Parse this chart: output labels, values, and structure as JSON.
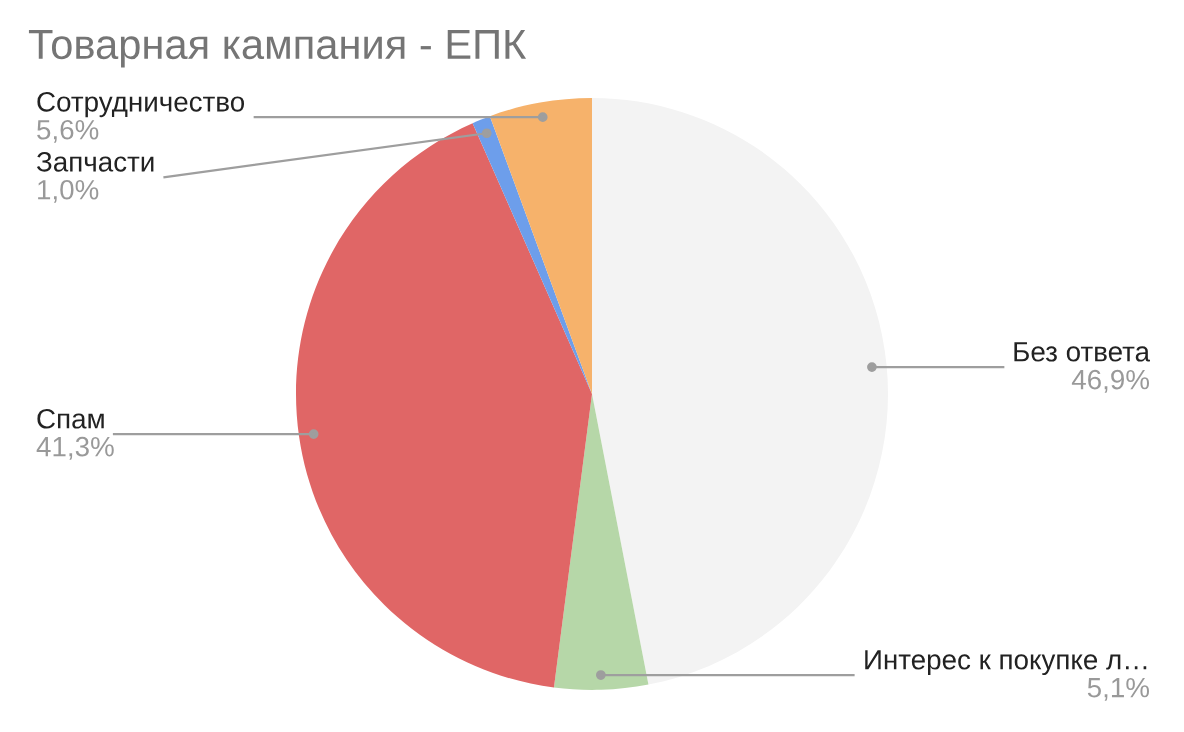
{
  "chart_data": {
    "type": "pie",
    "title": "Товарная кампания - ЕПК",
    "categories": [
      "Без ответа",
      "Интерес к покупке л…",
      "Спам",
      "Запчасти",
      "Сотрудничество"
    ],
    "values": [
      46.9,
      5.1,
      41.3,
      1.0,
      5.6
    ],
    "colors": [
      "#f3f3f3",
      "#b6d7a8",
      "#e06666",
      "#6d9eeb",
      "#f6b26b"
    ],
    "value_labels": [
      "46,9%",
      "5,1%",
      "41,3%",
      "1,0%",
      "5,6%"
    ]
  }
}
